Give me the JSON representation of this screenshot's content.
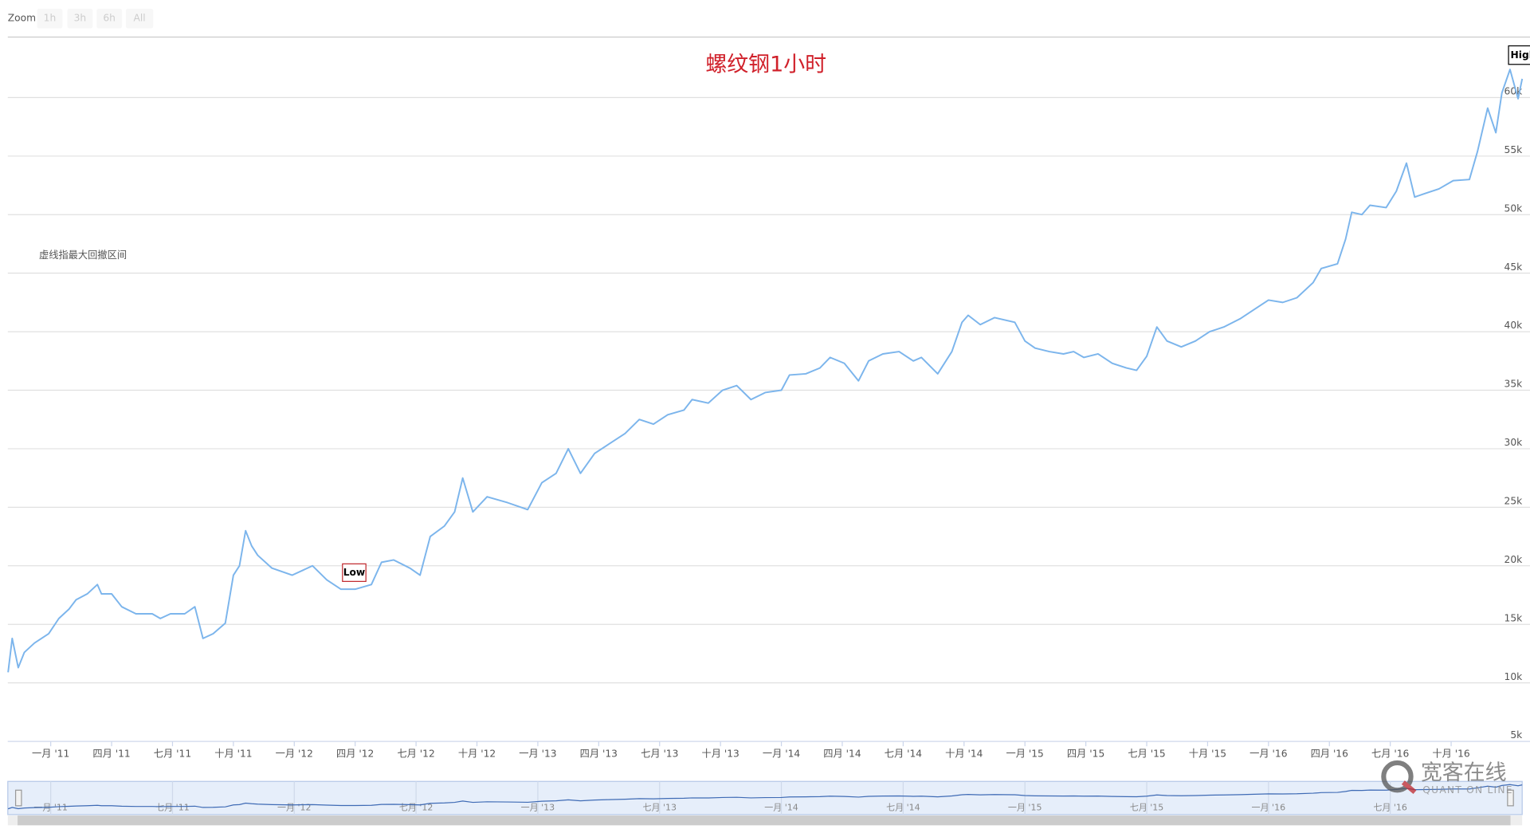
{
  "zoom": {
    "label": "Zoom",
    "buttons": [
      "1h",
      "3h",
      "6h",
      "All"
    ]
  },
  "chart_data": {
    "type": "line",
    "title": "螺纹钢1小时",
    "note": "虚线指最大回撤区间",
    "low_flag": "Low",
    "high_flag": "High",
    "series": [
      {
        "color": "#7cb5ec",
        "x": [
          -2.1,
          -1.9,
          -1.6,
          -1.3,
          -0.8,
          -0.1,
          0.4,
          0.9,
          1.25,
          1.8,
          2.3,
          2.5,
          3.0,
          3.5,
          4.2,
          5.0,
          5.4,
          5.9,
          6.6,
          7.1,
          7.5,
          8.0,
          8.6,
          9.0,
          9.3,
          9.6,
          9.9,
          10.2,
          10.9,
          11.9,
          12.9,
          13.6,
          14.3,
          15.0,
          15.8,
          16.3,
          16.9,
          17.7,
          18.2,
          18.7,
          19.4,
          19.9,
          20.3,
          20.8,
          21.5,
          22.5,
          23.5,
          24.2,
          24.9,
          25.5,
          26.1,
          26.8,
          27.5,
          28.3,
          29.0,
          29.7,
          30.4,
          31.2,
          31.6,
          32.4,
          33.1,
          33.8,
          34.5,
          35.2,
          36.0,
          36.4,
          37.2,
          37.9,
          38.4,
          39.1,
          39.8,
          40.3,
          41.0,
          41.8,
          42.5,
          42.9,
          43.7,
          44.4,
          44.9,
          45.2,
          45.8,
          46.5,
          47.5,
          48.0,
          48.5,
          49.2,
          49.9,
          50.4,
          50.9,
          51.6,
          52.3,
          53.0,
          53.5,
          54.0,
          54.5,
          55.0,
          55.7,
          56.4,
          57.1,
          57.8,
          58.6,
          59.3,
          60.0,
          60.7,
          61.4,
          62.2,
          62.6,
          63.4,
          63.8,
          64.1,
          64.6,
          65.0,
          65.8,
          66.3,
          66.8,
          67.2,
          67.7,
          68.4,
          69.1,
          69.9,
          70.3,
          70.8,
          71.2,
          71.5,
          71.9,
          72.3,
          72.5
        ],
        "values": [
          10900,
          13800,
          11300,
          12600,
          13400,
          14200,
          15500,
          16300,
          17100,
          17600,
          18400,
          17600,
          17600,
          16500,
          15900,
          15900,
          15500,
          15900,
          15900,
          16500,
          13800,
          14200,
          15100,
          19200,
          20000,
          23000,
          21700,
          20900,
          19800,
          19200,
          20000,
          18800,
          18000,
          18000,
          18400,
          20300,
          20500,
          19800,
          19200,
          22500,
          23400,
          24600,
          27500,
          24600,
          25900,
          25400,
          24800,
          27100,
          27900,
          30000,
          27900,
          29600,
          30400,
          31300,
          32500,
          32100,
          32900,
          33300,
          34200,
          33900,
          35000,
          35400,
          34200,
          34800,
          35000,
          36300,
          36400,
          36900,
          37800,
          37300,
          35800,
          37500,
          38100,
          38300,
          37500,
          37800,
          36400,
          38300,
          40800,
          41400,
          40600,
          41200,
          40800,
          39200,
          38600,
          38300,
          38100,
          38300,
          37800,
          38100,
          37300,
          36900,
          36700,
          37900,
          40400,
          39200,
          38700,
          39200,
          40000,
          40400,
          41100,
          41900,
          42700,
          42500,
          42900,
          44200,
          45400,
          45800,
          47900,
          50200,
          50000,
          50800,
          50600,
          52000,
          54400,
          51500,
          51800,
          52200,
          52900,
          53000,
          55400,
          59100,
          57000,
          60400,
          62400,
          59900,
          61600
        ]
      }
    ],
    "xlim": [
      -2.1,
      72.5
    ],
    "xticks": [
      {
        "value": 0,
        "label": "一月 '11"
      },
      {
        "value": 3,
        "label": "四月 '11"
      },
      {
        "value": 6,
        "label": "七月 '11"
      },
      {
        "value": 9,
        "label": "十月 '11"
      },
      {
        "value": 12,
        "label": "一月 '12"
      },
      {
        "value": 15,
        "label": "四月 '12"
      },
      {
        "value": 18,
        "label": "七月 '12"
      },
      {
        "value": 21,
        "label": "十月 '12"
      },
      {
        "value": 24,
        "label": "一月 '13"
      },
      {
        "value": 27,
        "label": "四月 '13"
      },
      {
        "value": 30,
        "label": "七月 '13"
      },
      {
        "value": 33,
        "label": "十月 '13"
      },
      {
        "value": 36,
        "label": "一月 '14"
      },
      {
        "value": 39,
        "label": "四月 '14"
      },
      {
        "value": 42,
        "label": "七月 '14"
      },
      {
        "value": 45,
        "label": "十月 '14"
      },
      {
        "value": 48,
        "label": "一月 '15"
      },
      {
        "value": 51,
        "label": "四月 '15"
      },
      {
        "value": 54,
        "label": "七月 '15"
      },
      {
        "value": 57,
        "label": "十月 '15"
      },
      {
        "value": 60,
        "label": "一月 '16"
      },
      {
        "value": 63,
        "label": "四月 '16"
      },
      {
        "value": 66,
        "label": "七月 '16"
      },
      {
        "value": 69,
        "label": "十月 '16"
      }
    ],
    "ylim": [
      5000,
      65000
    ],
    "yticks": [
      {
        "value": 5000,
        "label": "5k"
      },
      {
        "value": 10000,
        "label": "10k"
      },
      {
        "value": 15000,
        "label": "15k"
      },
      {
        "value": 20000,
        "label": "20k"
      },
      {
        "value": 25000,
        "label": "25k"
      },
      {
        "value": 30000,
        "label": "30k"
      },
      {
        "value": 35000,
        "label": "35k"
      },
      {
        "value": 40000,
        "label": "40k"
      },
      {
        "value": 45000,
        "label": "45k"
      },
      {
        "value": 50000,
        "label": "50k"
      },
      {
        "value": 55000,
        "label": "55k"
      },
      {
        "value": 60000,
        "label": "60k"
      }
    ],
    "grid": true
  },
  "watermark": {
    "name": "宽客在线",
    "subtitle": "QUANT ON LINE"
  }
}
